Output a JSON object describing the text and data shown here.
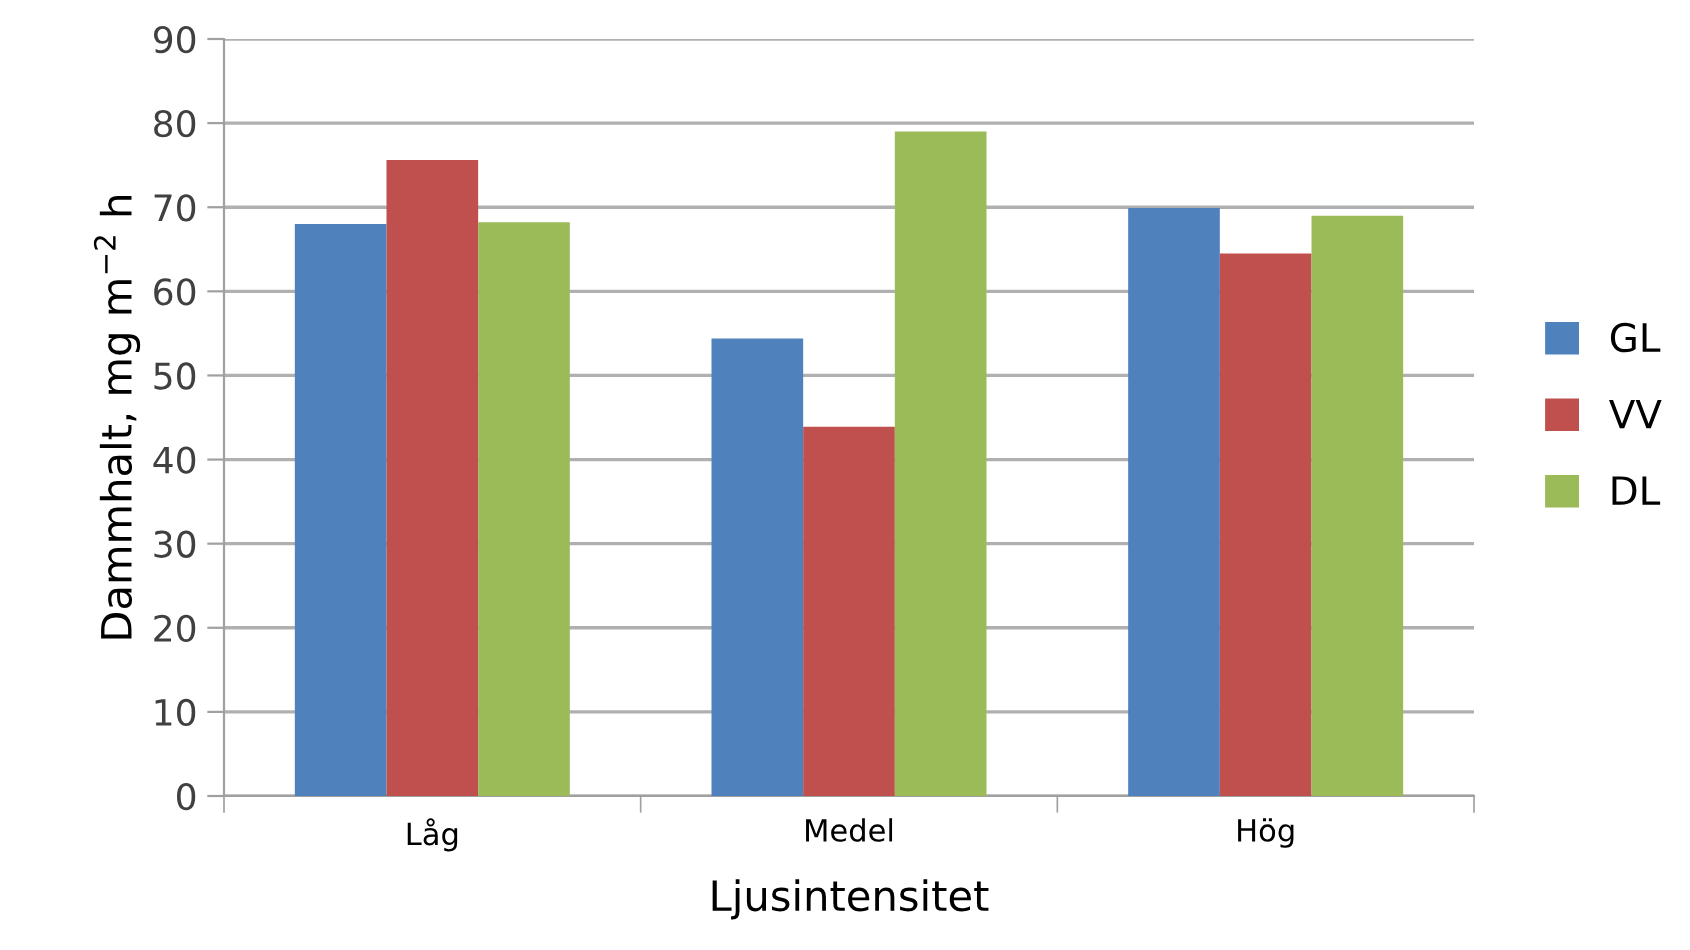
{
  "chart_data": {
    "type": "bar",
    "xlabel": "Ljusintensitet",
    "ylabel": "Dammhalt, mg m$^{−2}$ h",
    "categories": [
      "Låg",
      "Medel",
      "Hög"
    ],
    "series": [
      {
        "name": "GL",
        "color": "#4f81bd",
        "values": [
          68.0,
          54.4,
          69.9
        ]
      },
      {
        "name": "VV",
        "color": "#c0504d",
        "values": [
          75.6,
          43.9,
          64.5
        ]
      },
      {
        "name": "DL",
        "color": "#9bbb59",
        "values": [
          68.2,
          79.0,
          69.0
        ]
      }
    ],
    "ylim": [
      0,
      90
    ],
    "yticks": [
      0,
      10,
      20,
      30,
      40,
      50,
      60,
      70,
      80,
      90
    ],
    "grid": "y",
    "legend": "right"
  }
}
